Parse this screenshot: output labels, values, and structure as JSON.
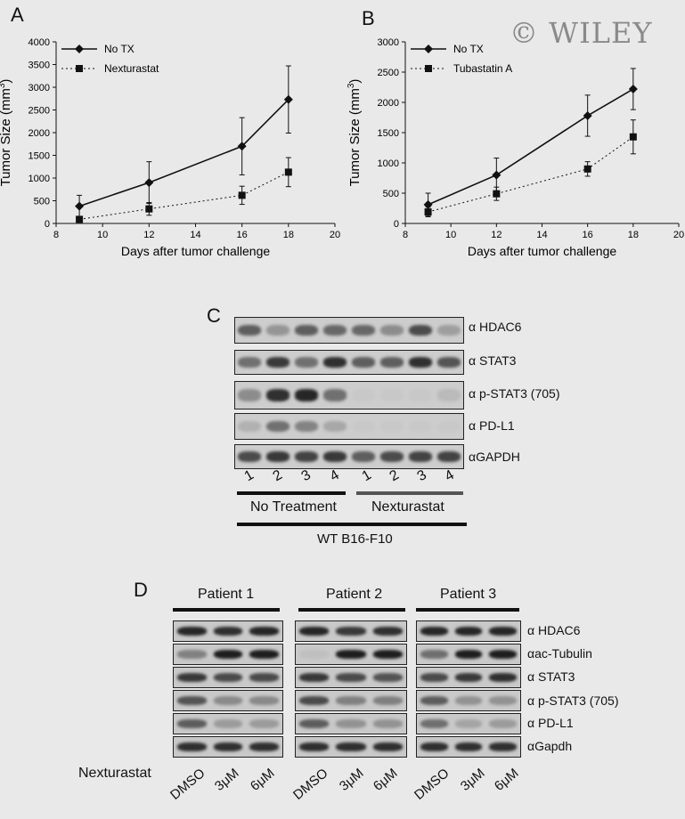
{
  "watermark": "© WILEY",
  "panels": {
    "a": "A",
    "b": "B",
    "c": "C",
    "d": "D"
  },
  "chart_data": [
    {
      "type": "line",
      "panel": "A",
      "xlabel": "Days after tumor challenge",
      "ylabel": "Tumor Size (mm3)",
      "ylabel_base": "Tumor Size (mm",
      "ylabel_sup": "3",
      "ylabel_end": ")",
      "xlim": [
        8,
        20
      ],
      "ylim": [
        0,
        4000
      ],
      "xticks": [
        8,
        10,
        12,
        14,
        16,
        18,
        20
      ],
      "yticks": [
        0,
        500,
        1000,
        1500,
        2000,
        2500,
        3000,
        3500,
        4000
      ],
      "legend_position": "top-left",
      "x": [
        9,
        12,
        16,
        18
      ],
      "series": [
        {
          "name": "No TX",
          "marker": "diamond",
          "style": "solid",
          "values": [
            380,
            900,
            1700,
            2730
          ],
          "error": [
            240,
            460,
            630,
            740
          ]
        },
        {
          "name": "Nexturastat",
          "marker": "square",
          "style": "dotted",
          "values": [
            90,
            320,
            620,
            1130
          ],
          "error": [
            60,
            140,
            200,
            320
          ]
        }
      ]
    },
    {
      "type": "line",
      "panel": "B",
      "xlabel": "Days after tumor challenge",
      "ylabel": "Tumor Size (mm3)",
      "ylabel_base": "Tumor Size (mm",
      "ylabel_sup": "3",
      "ylabel_end": ")",
      "xlim": [
        8,
        20
      ],
      "ylim": [
        0,
        3000
      ],
      "xticks": [
        8,
        10,
        12,
        14,
        16,
        18,
        20
      ],
      "yticks": [
        0,
        500,
        1000,
        1500,
        2000,
        2500,
        3000
      ],
      "legend_position": "top-left",
      "x": [
        9,
        12,
        16,
        18
      ],
      "series": [
        {
          "name": "No TX",
          "marker": "diamond",
          "style": "solid",
          "values": [
            310,
            800,
            1780,
            2220
          ],
          "error": [
            190,
            280,
            340,
            340
          ]
        },
        {
          "name": "Tubastatin A",
          "marker": "square",
          "style": "dotted",
          "values": [
            190,
            490,
            900,
            1430
          ],
          "error": [
            80,
            110,
            120,
            280
          ]
        }
      ]
    }
  ],
  "blot_c": {
    "labels": [
      "α HDAC6",
      "α STAT3",
      "α p-STAT3 (705)",
      "α PD-L1",
      "αGAPDH"
    ],
    "lanes": [
      "1",
      "2",
      "3",
      "4",
      "1",
      "2",
      "3",
      "4"
    ],
    "group1": "No Treatment",
    "group2": "Nexturastat",
    "cell_line": "WT B16-F10"
  },
  "blot_d": {
    "patients": [
      "Patient 1",
      "Patient 2",
      "Patient 3"
    ],
    "labels": [
      "α HDAC6",
      "αac-Tubulin",
      "α STAT3",
      "α p-STAT3 (705)",
      "α PD-L1",
      "αGapdh"
    ],
    "treatment_label": "Nexturastat",
    "conditions": [
      "DMSO",
      "3μM",
      "6μM"
    ]
  }
}
